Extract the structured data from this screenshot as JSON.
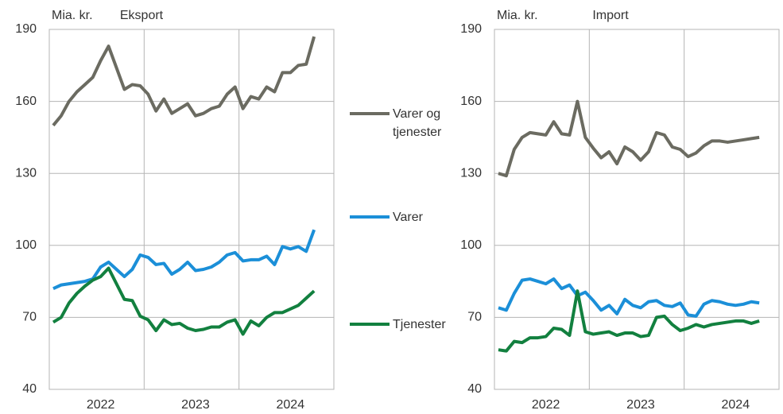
{
  "chart_data": [
    {
      "type": "line",
      "title": "Eksport",
      "y_label": "Mia. kr.",
      "categories": [
        null,
        null,
        null,
        null,
        null,
        null,
        "2022",
        null,
        null,
        null,
        null,
        null,
        null,
        null,
        null,
        null,
        null,
        null,
        "2023",
        null,
        null,
        null,
        null,
        null,
        null,
        null,
        null,
        null,
        null,
        null,
        "2024",
        null,
        null,
        null
      ],
      "ylim": [
        40,
        190
      ],
      "yticks": [
        40,
        70,
        100,
        130,
        160,
        190
      ],
      "grid": true,
      "series": [
        {
          "name": "Varer og tjenester",
          "color": "#6b6b61",
          "values": [
            150,
            154,
            160,
            164,
            167,
            170,
            177,
            183,
            174,
            165,
            167,
            166.5,
            163,
            156,
            161,
            155,
            157,
            159,
            154,
            155,
            157,
            158,
            163,
            166,
            157,
            162,
            161,
            166,
            164,
            172,
            172,
            175,
            175.5,
            187
          ]
        },
        {
          "name": "Varer",
          "color": "#1b8fd8",
          "values": [
            82,
            83.5,
            84,
            84.5,
            85,
            86,
            91,
            93,
            90,
            87,
            90,
            96,
            95,
            92,
            92.5,
            88,
            90,
            93,
            89.5,
            90,
            91,
            93,
            96,
            97,
            93.5,
            94,
            94,
            95.5,
            92,
            99.5,
            98.5,
            99.5,
            97.5,
            106.5
          ]
        },
        {
          "name": "Tjenester",
          "color": "#12803f",
          "values": [
            68,
            70,
            76,
            80,
            83,
            85.5,
            87,
            90.5,
            84,
            77.5,
            77,
            70.5,
            69,
            64.5,
            69,
            67,
            67.5,
            65.5,
            64.5,
            65,
            66,
            66,
            68,
            69,
            63,
            68.5,
            66.5,
            70,
            72,
            72,
            73.5,
            75,
            78,
            81
          ]
        }
      ]
    },
    {
      "type": "line",
      "title": "Import",
      "y_label": "Mia. kr.",
      "categories": [
        null,
        null,
        null,
        null,
        null,
        null,
        "2022",
        null,
        null,
        null,
        null,
        null,
        null,
        null,
        null,
        null,
        null,
        null,
        "2023",
        null,
        null,
        null,
        null,
        null,
        null,
        null,
        null,
        null,
        null,
        null,
        "2024",
        null,
        null,
        null
      ],
      "ylim": [
        40,
        190
      ],
      "yticks": [
        40,
        70,
        100,
        130,
        160,
        190
      ],
      "grid": true,
      "series": [
        {
          "color": "#6b6b61",
          "values": [
            130,
            129,
            140,
            145,
            147,
            146.5,
            146,
            151.5,
            146.5,
            146,
            160,
            145,
            140.5,
            136.5,
            139,
            134,
            141,
            139,
            135.5,
            139,
            147,
            146,
            141,
            140,
            137,
            138.5,
            141.5,
            143.5,
            143.5,
            143,
            143.5,
            144,
            144.5,
            145
          ]
        },
        {
          "color": "#1b8fd8",
          "values": [
            74,
            73,
            80,
            85.5,
            86,
            85,
            84,
            86,
            82,
            83.5,
            79,
            80.5,
            77,
            73,
            75,
            71.5,
            77.5,
            75,
            74,
            76.5,
            77,
            75,
            74.5,
            76,
            71,
            70.5,
            75.5,
            77,
            76.5,
            75.5,
            75,
            75.5,
            76.5,
            76
          ]
        },
        {
          "color": "#12803f",
          "values": [
            56.5,
            56,
            60,
            59.5,
            61.5,
            61.5,
            62,
            65.5,
            65,
            62.5,
            81,
            64,
            63,
            63.5,
            64,
            62.5,
            63.5,
            63.5,
            62,
            62.5,
            70,
            70.5,
            67,
            64.5,
            65.5,
            67,
            66,
            67,
            67.5,
            68,
            68.5,
            68.5,
            67.5,
            68.5
          ]
        }
      ]
    }
  ]
}
